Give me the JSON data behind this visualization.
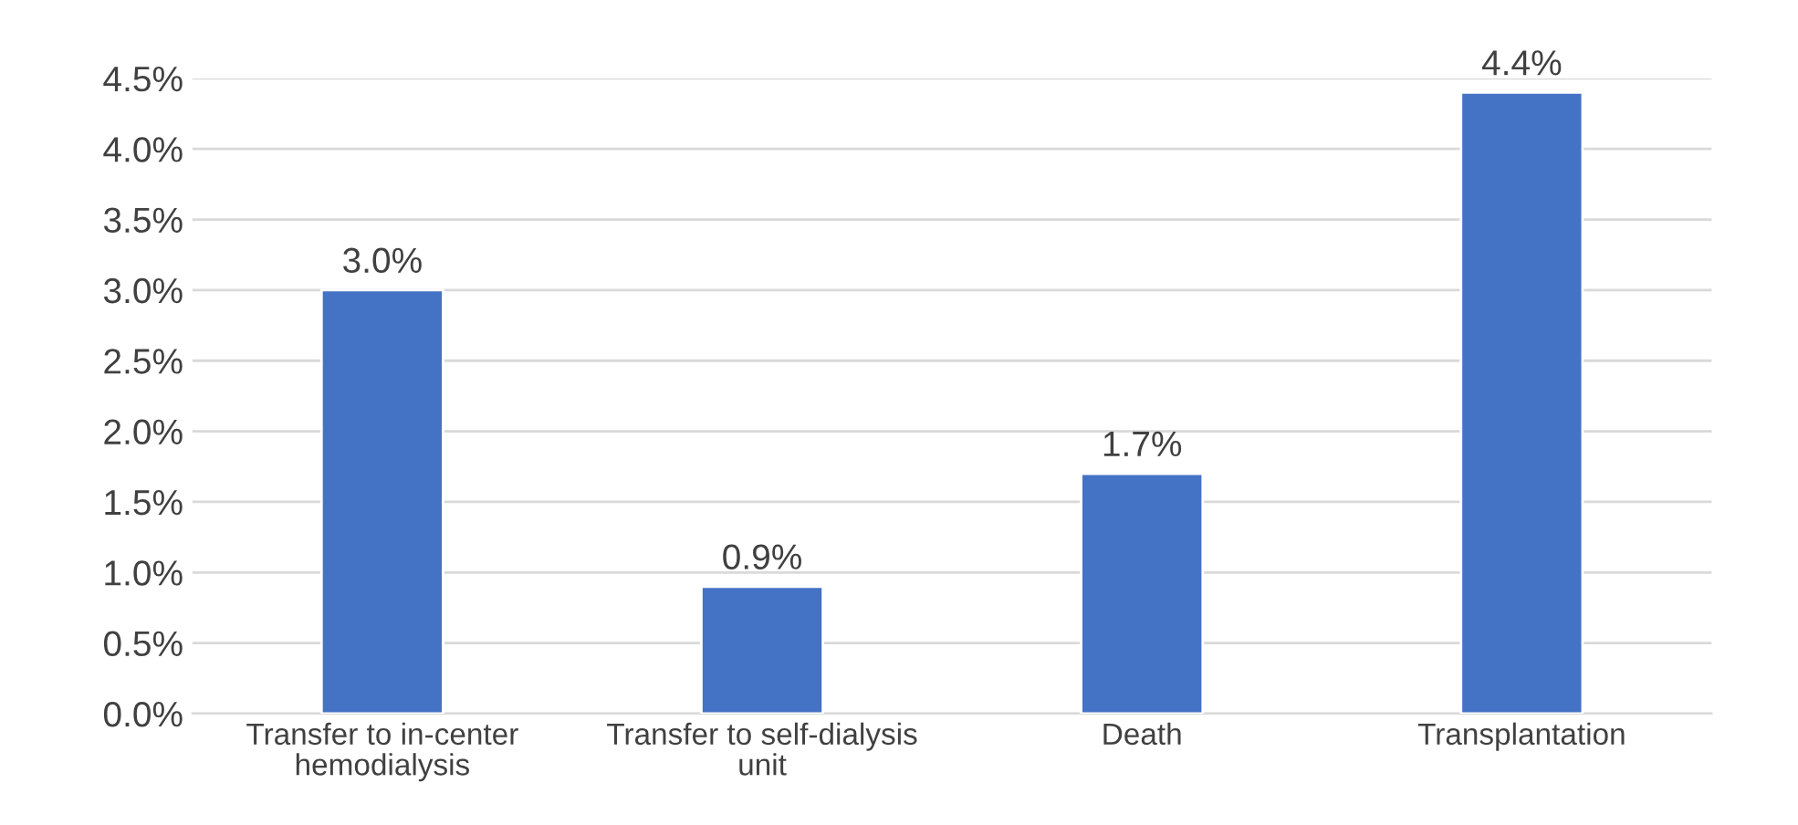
{
  "chart_data": {
    "type": "bar",
    "categories": [
      "Transfer to in-center\nhemodialysis",
      "Transfer to self-dialysis\nunit",
      "Death",
      "Transplantation"
    ],
    "values": [
      3.0,
      0.9,
      1.7,
      4.4
    ],
    "value_labels": [
      "3.0%",
      "0.9%",
      "1.7%",
      "4.4%"
    ],
    "color": "#4472c4",
    "ylim": [
      0,
      4.5
    ],
    "yticks": [
      {
        "value": 0,
        "label": "0.0%"
      },
      {
        "value": 0.5,
        "label": "0.5%"
      },
      {
        "value": 1.0,
        "label": "1.0%"
      },
      {
        "value": 1.5,
        "label": "1.5%"
      },
      {
        "value": 2.0,
        "label": "2.0%"
      },
      {
        "value": 2.5,
        "label": "2.5%"
      },
      {
        "value": 3.0,
        "label": "3.0%"
      },
      {
        "value": 3.5,
        "label": "3.5%"
      },
      {
        "value": 4.0,
        "label": "4.0%"
      },
      {
        "value": 4.5,
        "label": "4.5%"
      }
    ],
    "grid": "y"
  }
}
